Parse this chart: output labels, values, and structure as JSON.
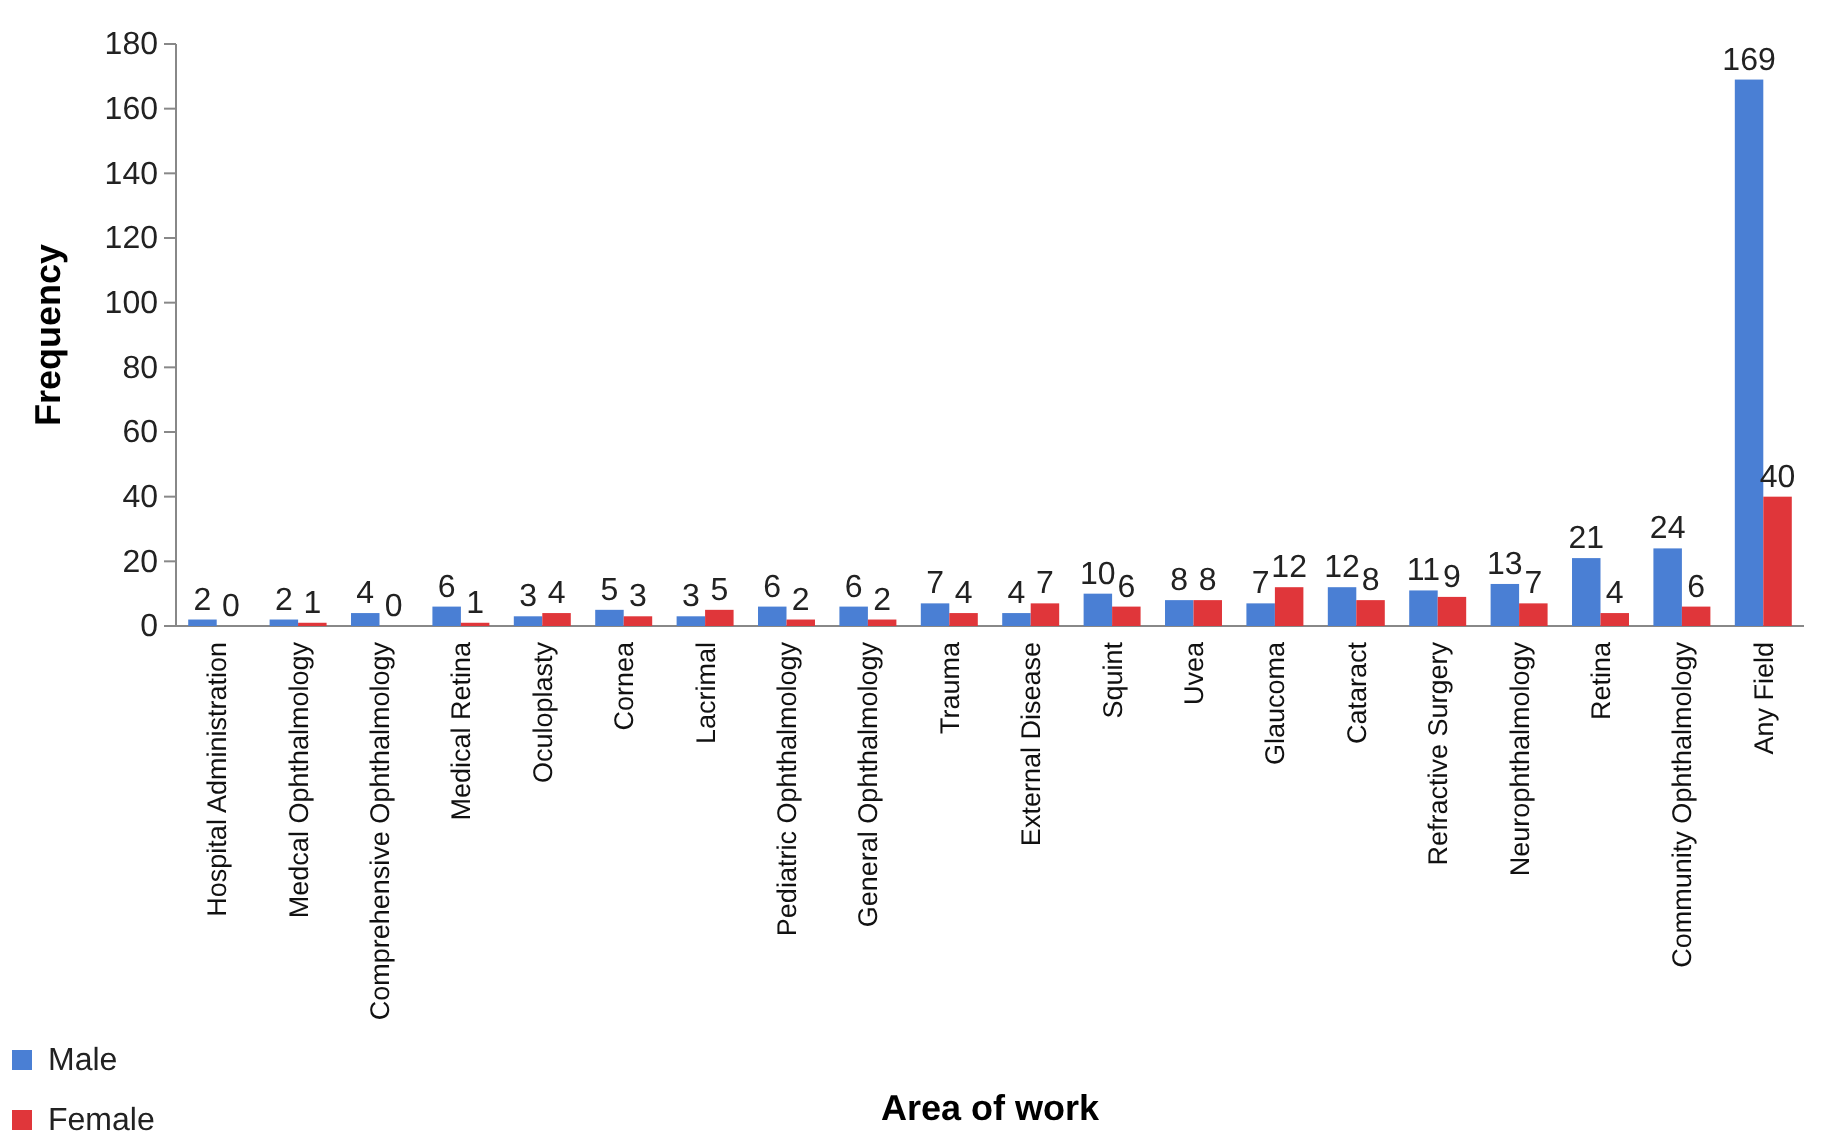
{
  "chart_data": {
    "type": "bar",
    "xlabel": "Area of work",
    "ylabel": "Frequency",
    "categories": [
      "Hospital Administration",
      "Medcal Ophthalmology",
      "Comprehensive Ophthalmology",
      "Medical Retina",
      "Oculoplasty",
      "Cornea",
      "Lacrimal",
      "Pediatric Ophthalmology",
      "General Ophthalmology",
      "Trauma",
      "External Disease",
      "Squint",
      "Uvea",
      "Glaucoma",
      "Cataract",
      "Refractive Surgery",
      "Neurophthalmology",
      "Retina",
      "Community Ophthalmology",
      "Any Field"
    ],
    "series": [
      {
        "name": "Male",
        "color": "#4a7fd4",
        "values": [
          2,
          2,
          4,
          6,
          3,
          5,
          3,
          6,
          6,
          7,
          4,
          10,
          8,
          7,
          12,
          11,
          13,
          21,
          24,
          169
        ]
      },
      {
        "name": "Female",
        "color": "#e0363a",
        "values": [
          0,
          1,
          0,
          1,
          4,
          3,
          5,
          2,
          2,
          4,
          7,
          6,
          8,
          12,
          8,
          9,
          7,
          4,
          6,
          40
        ]
      }
    ],
    "ylim": [
      0,
      180
    ],
    "yticks": [
      0,
      20,
      40,
      60,
      80,
      100,
      120,
      140,
      160,
      180
    ],
    "data_labels": true,
    "legend": "bottom left",
    "grid": false
  }
}
